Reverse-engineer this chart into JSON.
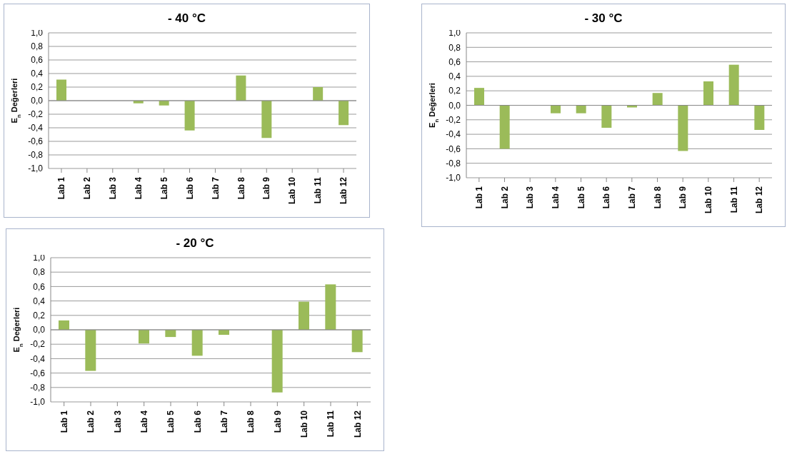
{
  "chart_data": [
    {
      "type": "bar",
      "title": "- 40 °C",
      "ylabel": "E$_{n}$ Değerleri",
      "categories": [
        "Lab 1",
        "Lab 2",
        "Lab 3",
        "Lab 4",
        "Lab 5",
        "Lab 6",
        "Lab 7",
        "Lab 8",
        "Lab 9",
        "Lab 10",
        "Lab 11",
        "Lab 12"
      ],
      "values": [
        0.31,
        null,
        null,
        -0.04,
        -0.07,
        -0.44,
        null,
        0.37,
        -0.55,
        null,
        0.2,
        -0.36
      ],
      "color": "#9bbb59",
      "ylim": [
        -1,
        1
      ],
      "yticks": [
        {
          "value": -1,
          "label": "-1,0"
        },
        {
          "value": -0.8,
          "label": "-0,8"
        },
        {
          "value": -0.6,
          "label": "-0,6"
        },
        {
          "value": -0.4,
          "label": "-0,4"
        },
        {
          "value": -0.2,
          "label": "-0,2"
        },
        {
          "value": 0,
          "label": "0,0"
        },
        {
          "value": 0.2,
          "label": "0,2"
        },
        {
          "value": 0.4,
          "label": "0,4"
        },
        {
          "value": 0.6,
          "label": "0,6"
        },
        {
          "value": 0.8,
          "label": "0,8"
        },
        {
          "value": 1,
          "label": "1,0"
        }
      ],
      "grid": "y",
      "legend": false
    },
    {
      "type": "bar",
      "title": "- 30 °C",
      "ylabel": "E$_{n}$ Değerleri",
      "categories": [
        "Lab 1",
        "Lab 2",
        "Lab 3",
        "Lab 4",
        "Lab 5",
        "Lab 6",
        "Lab 7",
        "Lab 8",
        "Lab 9",
        "Lab 10",
        "Lab 11",
        "Lab 12"
      ],
      "values": [
        0.24,
        -0.6,
        null,
        -0.11,
        -0.11,
        -0.31,
        -0.03,
        0.17,
        -0.63,
        0.33,
        0.56,
        -0.34
      ],
      "color": "#9bbb59",
      "ylim": [
        -1,
        1
      ],
      "yticks": [
        {
          "value": -1,
          "label": "-1,0"
        },
        {
          "value": -0.8,
          "label": "-0,8"
        },
        {
          "value": -0.6,
          "label": "-0,6"
        },
        {
          "value": -0.4,
          "label": "-0,4"
        },
        {
          "value": -0.2,
          "label": "-0,2"
        },
        {
          "value": 0,
          "label": "0,0"
        },
        {
          "value": 0.2,
          "label": "0,2"
        },
        {
          "value": 0.4,
          "label": "0,4"
        },
        {
          "value": 0.6,
          "label": "0,6"
        },
        {
          "value": 0.8,
          "label": "0,8"
        },
        {
          "value": 1,
          "label": "1,0"
        }
      ],
      "grid": "y",
      "legend": false
    },
    {
      "type": "bar",
      "title": "- 20 °C",
      "ylabel": "E$_{n}$ Değerleri",
      "categories": [
        "Lab 1",
        "Lab 2",
        "Lab 3",
        "Lab 4",
        "Lab 5",
        "Lab 6",
        "Lab 7",
        "Lab 8",
        "Lab 9",
        "Lab 10",
        "Lab 11",
        "Lab 12"
      ],
      "values": [
        0.13,
        -0.57,
        null,
        -0.19,
        -0.1,
        -0.36,
        -0.07,
        0,
        -0.87,
        0.39,
        0.63,
        -0.31
      ],
      "color": "#9bbb59",
      "ylim": [
        -1,
        1
      ],
      "yticks": [
        {
          "value": -1,
          "label": "-1,0"
        },
        {
          "value": -0.8,
          "label": "-0,8"
        },
        {
          "value": -0.6,
          "label": "-0,6"
        },
        {
          "value": -0.4,
          "label": "-0,4"
        },
        {
          "value": -0.2,
          "label": "-0,2"
        },
        {
          "value": 0,
          "label": "0,0"
        },
        {
          "value": 0.2,
          "label": "0,2"
        },
        {
          "value": 0.4,
          "label": "0,4"
        },
        {
          "value": 0.6,
          "label": "0,6"
        },
        {
          "value": 0.8,
          "label": "0,8"
        },
        {
          "value": 1,
          "label": "1,0"
        }
      ],
      "grid": "y",
      "legend": false
    }
  ]
}
